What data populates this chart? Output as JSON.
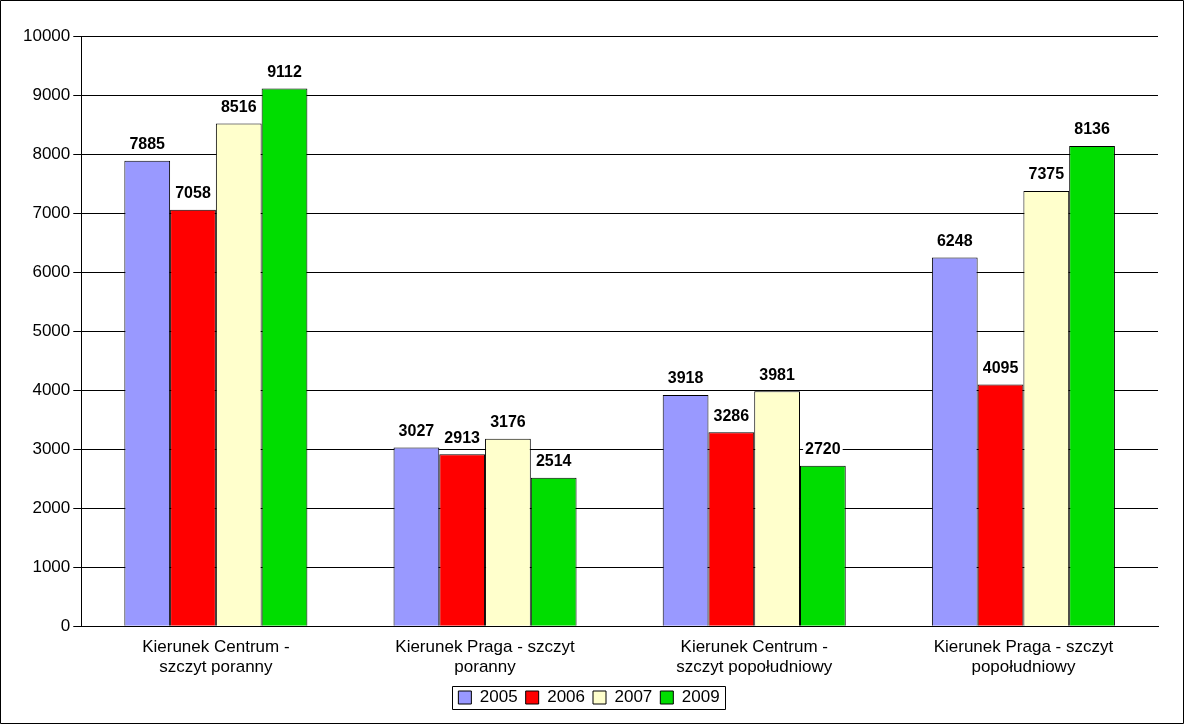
{
  "chart_data": {
    "type": "bar",
    "categories": [
      "Kierunek Centrum - szczyt poranny",
      "Kierunek Praga - szczyt poranny",
      "Kierunek Centrum - szczyt popołudniowy",
      "Kierunek Praga - szczyt popołudniowy"
    ],
    "series": [
      {
        "name": "2005",
        "color": "#9999ff",
        "values": [
          7885,
          3027,
          3918,
          6248
        ]
      },
      {
        "name": "2006",
        "color": "#ff0000",
        "values": [
          7058,
          2913,
          3286,
          4095
        ]
      },
      {
        "name": "2007",
        "color": "#ffffcc",
        "values": [
          8516,
          3176,
          3981,
          7375
        ]
      },
      {
        "name": "2009",
        "color": "#00dd00",
        "values": [
          9112,
          2514,
          2720,
          8136
        ]
      }
    ],
    "ylim": [
      0,
      10000
    ],
    "yticks": [
      0,
      1000,
      2000,
      3000,
      4000,
      5000,
      6000,
      7000,
      8000,
      9000,
      10000
    ],
    "grid": "y",
    "legend": "bottom",
    "data_labels": true
  }
}
